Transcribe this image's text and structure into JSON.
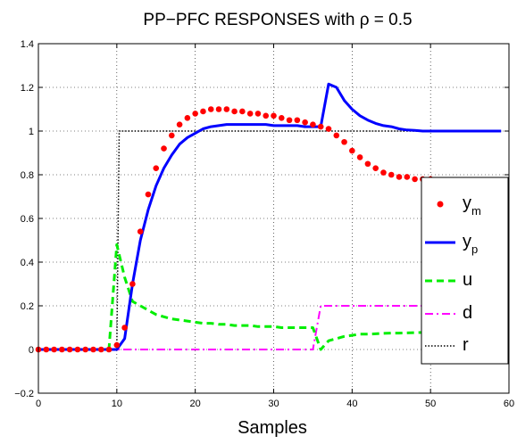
{
  "chart_data": {
    "type": "line",
    "title": "PP−PFC RESPONSES with ρ = 0.5",
    "xlabel": "Samples",
    "ylabel": "",
    "xlim": [
      0,
      60
    ],
    "ylim": [
      -0.2,
      1.4
    ],
    "xticks": [
      0,
      10,
      20,
      30,
      40,
      50,
      60
    ],
    "yticks": [
      -0.2,
      0,
      0.2,
      0.4,
      0.6,
      0.8,
      1,
      1.2,
      1.4
    ],
    "xtick_labels": [
      "0",
      "10",
      "20",
      "30",
      "40",
      "50",
      "60"
    ],
    "ytick_labels": [
      "−0.2",
      "0",
      "0.2",
      "0.4",
      "0.6",
      "0.8",
      "1",
      "1.2",
      "1.4"
    ],
    "grid": true,
    "legend_position": "right",
    "legend": [
      {
        "base": "y",
        "sub": "m"
      },
      {
        "base": "y",
        "sub": "p"
      },
      {
        "base": "u",
        "sub": ""
      },
      {
        "base": "d",
        "sub": ""
      },
      {
        "base": "r",
        "sub": ""
      }
    ],
    "series": [
      {
        "key": "ym",
        "style": "markers",
        "color": "#ff0000",
        "x": [
          0,
          1,
          2,
          3,
          4,
          5,
          6,
          7,
          8,
          9,
          10,
          11,
          12,
          13,
          14,
          15,
          16,
          17,
          18,
          19,
          20,
          21,
          22,
          23,
          24,
          25,
          26,
          27,
          28,
          29,
          30,
          31,
          32,
          33,
          34,
          35,
          36,
          37,
          38,
          39,
          40,
          41,
          42,
          43,
          44,
          45,
          46,
          47,
          48,
          49,
          50,
          51,
          52,
          53,
          54,
          55,
          56,
          57,
          58,
          59
        ],
        "y": [
          0,
          0,
          0,
          0,
          0,
          0,
          0,
          0,
          0,
          0,
          0.02,
          0.1,
          0.3,
          0.54,
          0.71,
          0.83,
          0.92,
          0.98,
          1.03,
          1.06,
          1.08,
          1.09,
          1.1,
          1.1,
          1.1,
          1.09,
          1.09,
          1.08,
          1.08,
          1.07,
          1.07,
          1.06,
          1.05,
          1.05,
          1.04,
          1.03,
          1.02,
          1.01,
          0.98,
          0.95,
          0.91,
          0.88,
          0.85,
          0.83,
          0.81,
          0.8,
          0.79,
          0.79,
          0.78,
          0.78,
          0.78,
          0.77,
          0.77,
          0.77,
          0.77,
          0.77,
          0.77,
          0.77,
          0.77,
          0.77
        ]
      },
      {
        "key": "yp",
        "style": "solid",
        "color": "#0000ff",
        "x": [
          0,
          10,
          11,
          12,
          13,
          14,
          15,
          16,
          17,
          18,
          19,
          20,
          21,
          22,
          23,
          24,
          25,
          26,
          27,
          28,
          29,
          30,
          31,
          32,
          33,
          34,
          35,
          36,
          37,
          38,
          39,
          40,
          41,
          42,
          43,
          44,
          45,
          46,
          47,
          48,
          49,
          50,
          51,
          52,
          53,
          54,
          55,
          56,
          57,
          58,
          59
        ],
        "y": [
          0,
          0,
          0.05,
          0.3,
          0.5,
          0.64,
          0.75,
          0.83,
          0.89,
          0.94,
          0.97,
          0.99,
          1.01,
          1.02,
          1.025,
          1.03,
          1.03,
          1.03,
          1.03,
          1.03,
          1.03,
          1.025,
          1.025,
          1.025,
          1.025,
          1.02,
          1.02,
          1.02,
          1.215,
          1.2,
          1.14,
          1.1,
          1.07,
          1.05,
          1.035,
          1.025,
          1.02,
          1.01,
          1.005,
          1.003,
          1.0,
          1.0,
          1.0,
          1.0,
          1.0,
          1.0,
          1.0,
          1.0,
          1.0,
          1.0,
          1.0
        ]
      },
      {
        "key": "u",
        "style": "dashed",
        "color": "#00ee00",
        "x": [
          0,
          9,
          10,
          11,
          12,
          13,
          14,
          15,
          16,
          17,
          18,
          19,
          20,
          21,
          22,
          23,
          24,
          25,
          26,
          27,
          28,
          29,
          30,
          31,
          32,
          33,
          34,
          35,
          36,
          37,
          38,
          39,
          40,
          41,
          42,
          43,
          44,
          45,
          46,
          47,
          48,
          49,
          50,
          51,
          52,
          53,
          54,
          55,
          56,
          57,
          58,
          59
        ],
        "y": [
          0,
          0,
          0.48,
          0.33,
          0.22,
          0.2,
          0.18,
          0.16,
          0.15,
          0.14,
          0.135,
          0.13,
          0.125,
          0.12,
          0.12,
          0.115,
          0.115,
          0.11,
          0.11,
          0.11,
          0.105,
          0.105,
          0.105,
          0.1,
          0.1,
          0.1,
          0.1,
          0.1,
          0.0,
          0.04,
          0.05,
          0.06,
          0.065,
          0.07,
          0.07,
          0.072,
          0.074,
          0.075,
          0.075,
          0.076,
          0.077,
          0.078,
          0.078,
          0.078,
          0.079,
          0.079,
          0.08,
          0.08,
          0.08,
          0.08,
          0.08,
          0.08
        ]
      },
      {
        "key": "d",
        "style": "dashdot",
        "color": "#ff00ff",
        "x": [
          0,
          35,
          36,
          59
        ],
        "y": [
          0,
          0,
          0.2,
          0.2
        ]
      },
      {
        "key": "r",
        "style": "dotted",
        "color": "#000000",
        "x": [
          0,
          9,
          10,
          10.3,
          59
        ],
        "y": [
          0,
          0,
          0,
          1,
          1
        ]
      }
    ]
  }
}
